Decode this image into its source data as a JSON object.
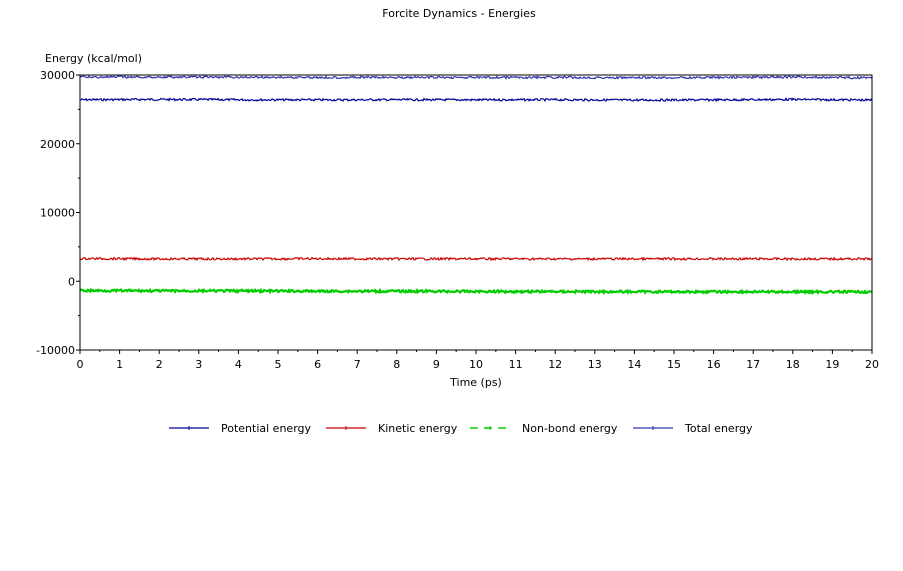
{
  "chart_data": {
    "type": "line",
    "title": "Forcite Dynamics - Energies",
    "xlabel": "Time (ps)",
    "ylabel": "Energy (kcal/mol)",
    "xlim": [
      0,
      20
    ],
    "ylim": [
      -10000,
      30000
    ],
    "x_ticks": [
      "0",
      "1",
      "2",
      "3",
      "4",
      "5",
      "6",
      "7",
      "8",
      "9",
      "10",
      "11",
      "12",
      "13",
      "14",
      "15",
      "16",
      "17",
      "18",
      "19",
      "20"
    ],
    "y_ticks": [
      "-10000",
      "0",
      "10000",
      "20000",
      "30000"
    ],
    "grid": false,
    "legend_position": "bottom",
    "series": [
      {
        "name": "Potential energy",
        "color": "#000099",
        "dash": "solid",
        "x": [
          0,
          2,
          4,
          6,
          8,
          10,
          12,
          14,
          16,
          18,
          20
        ],
        "values": [
          26400,
          26450,
          26400,
          26380,
          26400,
          26380,
          26400,
          26350,
          26380,
          26450,
          26350
        ]
      },
      {
        "name": "Kinetic energy",
        "color": "#cc0000",
        "dash": "solid",
        "x": [
          0,
          2,
          4,
          6,
          8,
          10,
          12,
          14,
          16,
          18,
          20
        ],
        "values": [
          3300,
          3250,
          3250,
          3280,
          3250,
          3260,
          3250,
          3250,
          3260,
          3250,
          3250
        ]
      },
      {
        "name": "Non-bond energy",
        "color": "#00cc00",
        "dash": "dashed",
        "x": [
          0,
          2,
          4,
          6,
          8,
          10,
          12,
          14,
          16,
          18,
          20
        ],
        "values": [
          -1350,
          -1400,
          -1400,
          -1450,
          -1450,
          -1480,
          -1500,
          -1520,
          -1530,
          -1540,
          -1550
        ]
      },
      {
        "name": "Total energy",
        "color": "#3333aa",
        "dash": "solid",
        "x": [
          0,
          2,
          4,
          6,
          8,
          10,
          12,
          14,
          16,
          18,
          20
        ],
        "values": [
          29700,
          29700,
          29680,
          29650,
          29650,
          29640,
          29650,
          29600,
          29640,
          29700,
          29600
        ]
      }
    ]
  }
}
